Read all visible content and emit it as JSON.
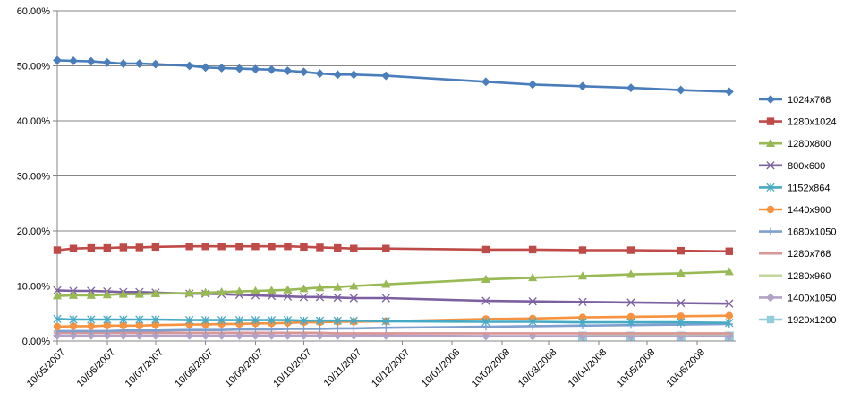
{
  "chart_data": {
    "type": "line",
    "title": "",
    "xlabel": "",
    "ylabel": "",
    "ylim": [
      0,
      60
    ],
    "y_ticks": [
      "0.00%",
      "10.00%",
      "20.00%",
      "30.00%",
      "40.00%",
      "50.00%",
      "60.00%"
    ],
    "x_ticks": [
      "10/05/2007",
      "10/06/2007",
      "10/07/2007",
      "10/08/2007",
      "10/09/2007",
      "10/10/2007",
      "10/11/2007",
      "10/12/2007",
      "10/01/2008",
      "10/02/2008",
      "10/03/2008",
      "10/04/2008",
      "10/05/2008",
      "10/06/2008"
    ],
    "grid": "horizontal",
    "legend_position": "right",
    "x": [
      "2007-05-10",
      "2007-05-20",
      "2007-05-31",
      "2007-06-10",
      "2007-06-20",
      "2007-06-30",
      "2007-07-10",
      "2007-07-31",
      "2007-08-10",
      "2007-08-20",
      "2007-08-31",
      "2007-09-10",
      "2007-09-20",
      "2007-09-30",
      "2007-10-10",
      "2007-10-20",
      "2007-10-31",
      "2007-11-10",
      "2007-11-30",
      "2008-01-31",
      "2008-02-29",
      "2008-03-31",
      "2008-04-30",
      "2008-05-31",
      "2008-06-30"
    ],
    "series": [
      {
        "name": "1024x768",
        "color": "#4a7ebb",
        "marker": "diamond",
        "values": [
          51.0,
          50.9,
          50.8,
          50.6,
          50.4,
          50.4,
          50.3,
          50.0,
          49.7,
          49.6,
          49.5,
          49.4,
          49.3,
          49.1,
          48.9,
          48.6,
          48.4,
          48.4,
          48.2,
          47.1,
          46.6,
          46.3,
          46.0,
          45.6,
          45.3
        ]
      },
      {
        "name": "1280x1024",
        "color": "#be4b48",
        "marker": "square",
        "values": [
          16.5,
          16.8,
          16.9,
          16.9,
          17.0,
          17.0,
          17.1,
          17.2,
          17.2,
          17.2,
          17.2,
          17.2,
          17.2,
          17.2,
          17.1,
          17.0,
          16.9,
          16.8,
          16.8,
          16.6,
          16.6,
          16.5,
          16.5,
          16.4,
          16.3
        ]
      },
      {
        "name": "1280x800",
        "color": "#98b954",
        "marker": "triangle",
        "values": [
          8.2,
          8.3,
          8.3,
          8.4,
          8.5,
          8.5,
          8.6,
          8.7,
          8.8,
          8.9,
          9.0,
          9.1,
          9.2,
          9.3,
          9.5,
          9.7,
          9.8,
          10.0,
          10.3,
          11.2,
          11.5,
          11.8,
          12.1,
          12.3,
          12.6
        ]
      },
      {
        "name": "800x600",
        "color": "#7d60a0",
        "marker": "x",
        "values": [
          9.2,
          9.1,
          9.1,
          9.0,
          8.9,
          8.9,
          8.8,
          8.6,
          8.6,
          8.5,
          8.4,
          8.3,
          8.2,
          8.1,
          8.0,
          8.0,
          7.9,
          7.8,
          7.8,
          7.3,
          7.2,
          7.1,
          7.0,
          6.9,
          6.8
        ]
      },
      {
        "name": "1152x864",
        "color": "#46aac5",
        "marker": "star",
        "values": [
          4.0,
          3.9,
          3.9,
          3.9,
          3.9,
          3.9,
          3.9,
          3.8,
          3.8,
          3.8,
          3.8,
          3.8,
          3.8,
          3.8,
          3.7,
          3.7,
          3.7,
          3.7,
          3.6,
          3.5,
          3.5,
          3.4,
          3.4,
          3.4,
          3.3
        ]
      },
      {
        "name": "1440x900",
        "color": "#f69240",
        "marker": "circle",
        "values": [
          2.6,
          2.7,
          2.7,
          2.8,
          2.8,
          2.8,
          2.9,
          3.0,
          3.0,
          3.1,
          3.1,
          3.2,
          3.2,
          3.3,
          3.4,
          3.4,
          3.5,
          3.5,
          3.6,
          4.0,
          4.1,
          4.3,
          4.4,
          4.5,
          4.6
        ]
      },
      {
        "name": "1680x1050",
        "color": "#7f9fcf",
        "marker": "plus",
        "values": [
          1.8,
          1.8,
          1.8,
          1.8,
          1.9,
          1.9,
          1.9,
          2.0,
          2.0,
          2.0,
          2.1,
          2.1,
          2.1,
          2.2,
          2.2,
          2.2,
          2.3,
          2.3,
          2.4,
          2.6,
          2.7,
          2.8,
          2.9,
          3.0,
          3.1
        ]
      },
      {
        "name": "1280x768",
        "color": "#d99694",
        "marker": "dash",
        "values": [
          1.5,
          1.5,
          1.5,
          1.5,
          1.5,
          1.5,
          1.5,
          1.5,
          1.5,
          1.5,
          1.5,
          1.5,
          1.5,
          1.5,
          1.5,
          1.5,
          1.4,
          1.4,
          1.4,
          1.4,
          1.4,
          1.4,
          1.4,
          1.4,
          1.4
        ]
      },
      {
        "name": "1280x960",
        "color": "#c3d69b",
        "marker": "none",
        "values": [
          null,
          null,
          null,
          null,
          null,
          null,
          null,
          null,
          null,
          null,
          null,
          null,
          null,
          null,
          null,
          null,
          null,
          null,
          null,
          null,
          null,
          1.3,
          1.3,
          1.3,
          1.3
        ]
      },
      {
        "name": "1400x1050",
        "color": "#b3a2c7",
        "marker": "diamond",
        "values": [
          1.0,
          1.0,
          1.0,
          1.0,
          1.0,
          1.0,
          1.0,
          1.0,
          1.0,
          1.0,
          1.0,
          1.0,
          1.0,
          1.0,
          1.0,
          1.0,
          1.0,
          1.0,
          1.0,
          0.9,
          0.9,
          0.9,
          0.9,
          0.9,
          0.9
        ]
      },
      {
        "name": "1920x1200",
        "color": "#93cddd",
        "marker": "square",
        "values": [
          null,
          null,
          null,
          null,
          null,
          null,
          null,
          null,
          null,
          null,
          null,
          null,
          null,
          null,
          null,
          null,
          null,
          null,
          null,
          null,
          null,
          0.9,
          0.9,
          0.9,
          0.9
        ]
      }
    ]
  }
}
